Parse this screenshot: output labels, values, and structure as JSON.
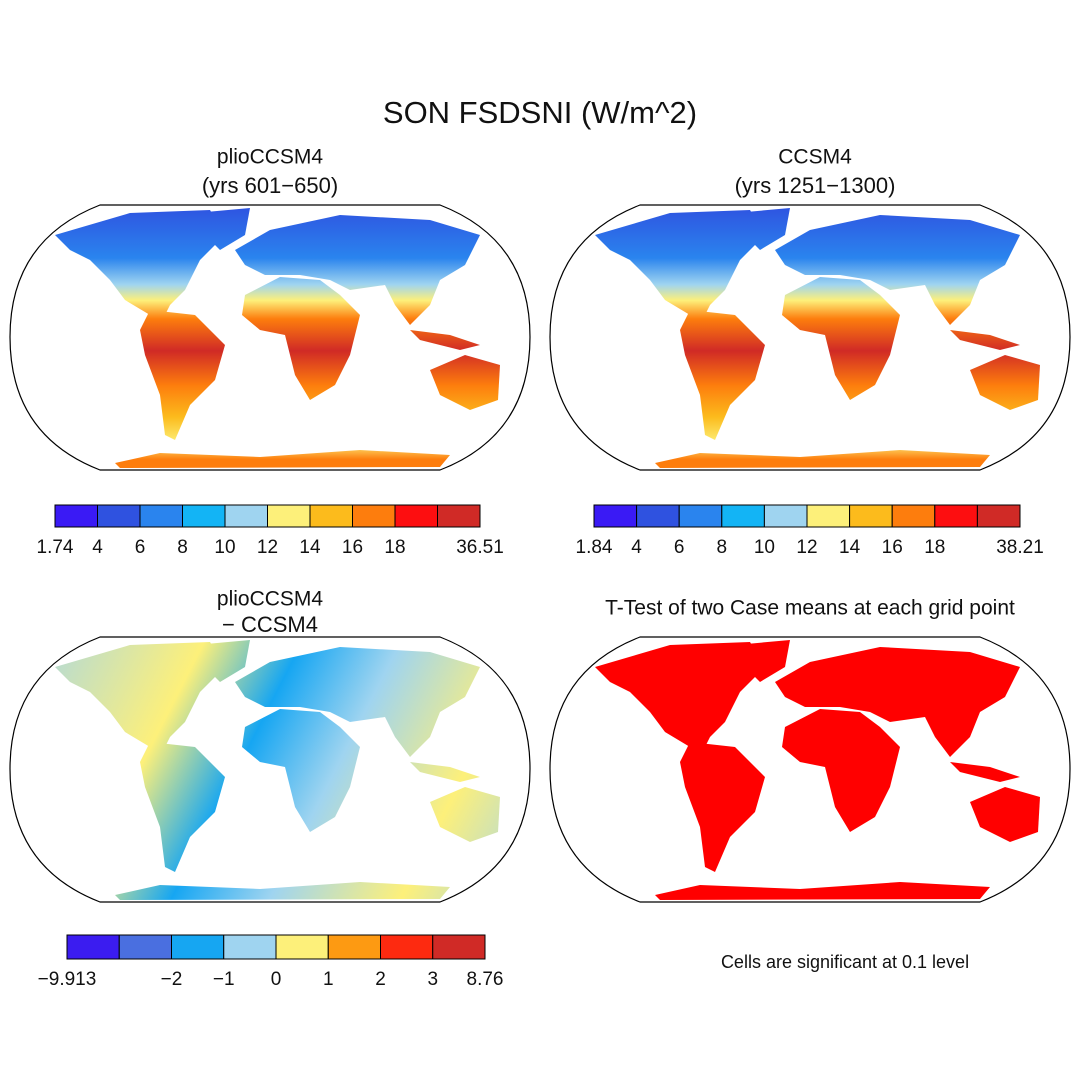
{
  "title": "SON FSDSNI (W/m^2)",
  "panels": [
    {
      "title": "plioCCSM4",
      "subtitle": "(yrs 601−650)",
      "colorbar": {
        "colors": [
          "#3a1af5",
          "#2f52e0",
          "#2a84ee",
          "#13b4f5",
          "#9fd4f0",
          "#fdf07a",
          "#fcbb1c",
          "#fd7d0d",
          "#fd0e10",
          "#d02a26"
        ],
        "labels": [
          "1.74",
          "4",
          "6",
          "8",
          "10",
          "12",
          "14",
          "16",
          "18",
          null,
          "36.51"
        ]
      }
    },
    {
      "title": "CCSM4",
      "subtitle": "(yrs 1251−1300)",
      "colorbar": {
        "colors": [
          "#3a1af5",
          "#2f52e0",
          "#2a84ee",
          "#13b4f5",
          "#9fd4f0",
          "#fdf07a",
          "#fcbb1c",
          "#fd7d0d",
          "#fd0e10",
          "#d02a26"
        ],
        "labels": [
          "1.84",
          "4",
          "6",
          "8",
          "10",
          "12",
          "14",
          "16",
          "18",
          null,
          "38.21"
        ]
      }
    },
    {
      "title": "plioCCSM4",
      "subtitle": "− CCSM4",
      "colorbar": {
        "colors": [
          "#3b1cf0",
          "#4a6fe0",
          "#16a6f2",
          "#9fd4f0",
          "#fdf07a",
          "#fd9a12",
          "#fd2a10",
          "#d02a26"
        ],
        "labels": [
          "−9.913",
          null,
          "−2",
          "−1",
          "0",
          "1",
          "2",
          "3",
          "8.76"
        ]
      }
    },
    {
      "title": "T-Test of two Case means at each grid point",
      "note": "Cells are significant at 0.1 level"
    }
  ]
}
